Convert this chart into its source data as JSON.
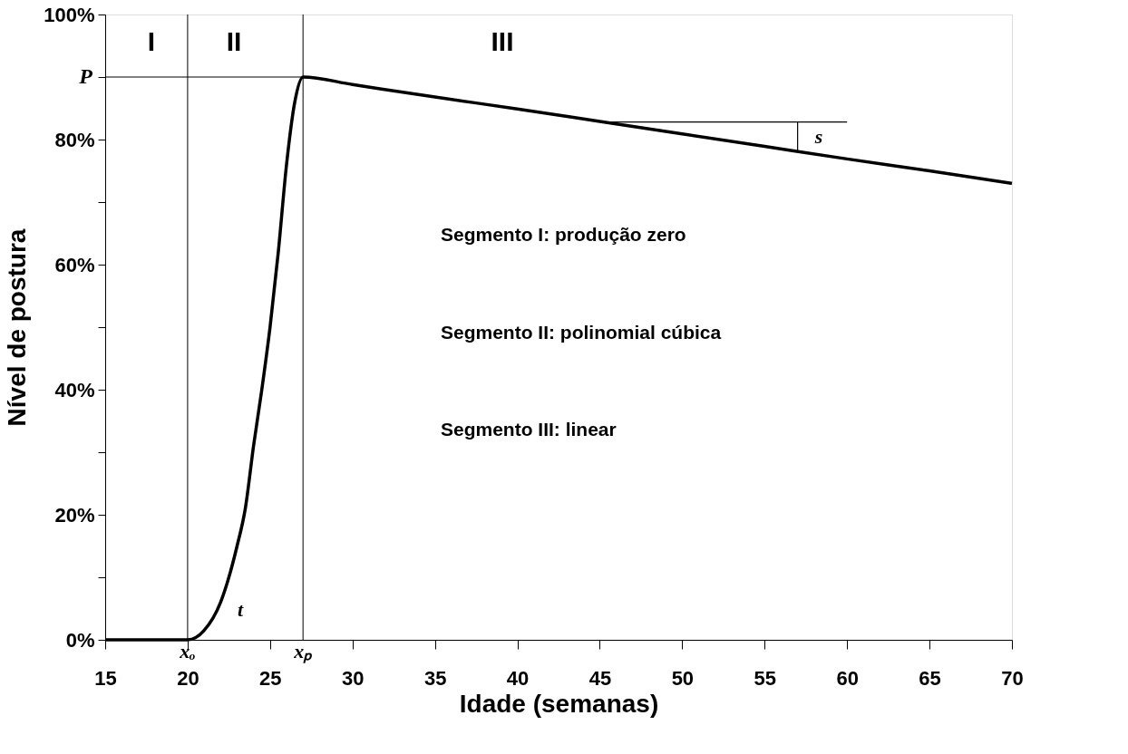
{
  "chart_data": {
    "type": "line",
    "xlabel": "Idade (semanas)",
    "ylabel": "Nível de postura",
    "xlim": [
      15,
      70
    ],
    "ylim": [
      0,
      100
    ],
    "xticks": [
      15,
      20,
      25,
      30,
      35,
      40,
      45,
      50,
      55,
      60,
      65,
      70
    ],
    "yticks": [
      {
        "value": 0,
        "label": "0%"
      },
      {
        "value": 10,
        "label": null
      },
      {
        "value": 20,
        "label": "20%"
      },
      {
        "value": 30,
        "label": null
      },
      {
        "value": 40,
        "label": "40%"
      },
      {
        "value": 50,
        "label": null
      },
      {
        "value": 60,
        "label": "60%"
      },
      {
        "value": 70,
        "label": null
      },
      {
        "value": 80,
        "label": "80%"
      },
      {
        "value": 90,
        "label": null
      },
      {
        "value": 100,
        "label": "100%"
      }
    ],
    "grid": false,
    "marker": "none",
    "line_style": "solid",
    "series": [
      {
        "color": "#000000",
        "x": [
          15,
          20,
          21,
          22,
          23,
          23.5,
          24,
          24.5,
          25,
          25.5,
          26,
          26.5,
          27,
          30,
          35,
          40,
          45,
          50,
          55,
          60,
          65,
          70
        ],
        "values": [
          0,
          0,
          1.5,
          6,
          15,
          21,
          31,
          40,
          50,
          62,
          76,
          86,
          90,
          88.8,
          86.8,
          84.9,
          82.9,
          80.9,
          78.9,
          76.9,
          75.0,
          73
        ]
      },
      {
        "color": "#000000",
        "x": [
          45.5,
          60
        ],
        "values": [
          82.8,
          82.8
        ]
      },
      {
        "color": "#000000",
        "x": [
          57,
          57
        ],
        "values": [
          78.1,
          82.8
        ]
      }
    ],
    "ref_lines": [
      {
        "axis": "x",
        "value": 20
      },
      {
        "axis": "x",
        "value": 27
      },
      {
        "axis": "y",
        "value": 90,
        "label": "P"
      }
    ],
    "annotations": [
      "I",
      "II",
      "III",
      "t",
      "s",
      {
        "text": "xₒ",
        "x": 20,
        "y": 0
      },
      {
        "text": "xₚ",
        "x": 27,
        "y": 0
      },
      "Segmento I: produção zero",
      "Segmento II: polinomial cúbica",
      "Segmento III: linear"
    ]
  }
}
